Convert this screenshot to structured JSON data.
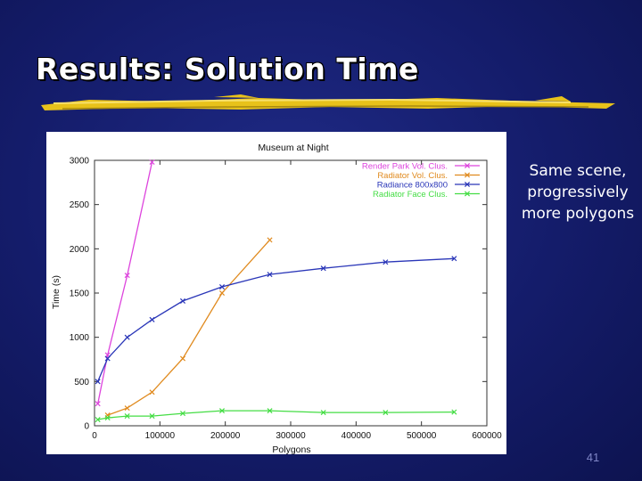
{
  "slide": {
    "title": "Results: Solution Time",
    "note": "Same scene, progressively more polygons",
    "page_number": "41"
  },
  "colors": {
    "title_underline": "#e8c21a",
    "background": "#141c6a"
  },
  "chart_data": {
    "type": "line",
    "title": "Museum at Night",
    "xlabel": "Polygons",
    "ylabel": "Time (s)",
    "xlim": [
      0,
      600000
    ],
    "ylim": [
      0,
      3000
    ],
    "xticks": [
      0,
      100000,
      200000,
      300000,
      400000,
      500000,
      600000
    ],
    "yticks": [
      0,
      500,
      1000,
      1500,
      2000,
      2500,
      3000
    ],
    "xtick_labels": [
      "0",
      "100000",
      "200000",
      "300000",
      "400000",
      "500000",
      "600000"
    ],
    "ytick_labels": [
      "0",
      "500",
      "1000",
      "1500",
      "2000",
      "2500",
      "3000"
    ],
    "legend_position": "top-right",
    "grid": false,
    "series": [
      {
        "name": "Render Park Vol. Clus.",
        "color": "#dd44dd",
        "x": [
          5000,
          20000,
          50000,
          88000
        ],
        "y": [
          250,
          800,
          1700,
          2980
        ]
      },
      {
        "name": "Radiator Vol. Clus.",
        "color": "#e08a1e",
        "x": [
          20000,
          50000,
          88000,
          135000,
          195000,
          268000
        ],
        "y": [
          120,
          200,
          380,
          760,
          1500,
          2100
        ]
      },
      {
        "name": "Radiance 800x800",
        "color": "#2a36b8",
        "x": [
          5000,
          20000,
          50000,
          88000,
          135000,
          195000,
          268000,
          350000,
          445000,
          550000
        ],
        "y": [
          500,
          760,
          1000,
          1200,
          1410,
          1570,
          1710,
          1780,
          1850,
          1890
        ]
      },
      {
        "name": "Radiator Face Clus.",
        "color": "#44dd44",
        "x": [
          5000,
          20000,
          50000,
          88000,
          135000,
          195000,
          268000,
          350000,
          445000,
          550000
        ],
        "y": [
          70,
          90,
          110,
          110,
          140,
          170,
          170,
          150,
          150,
          155
        ]
      }
    ]
  }
}
